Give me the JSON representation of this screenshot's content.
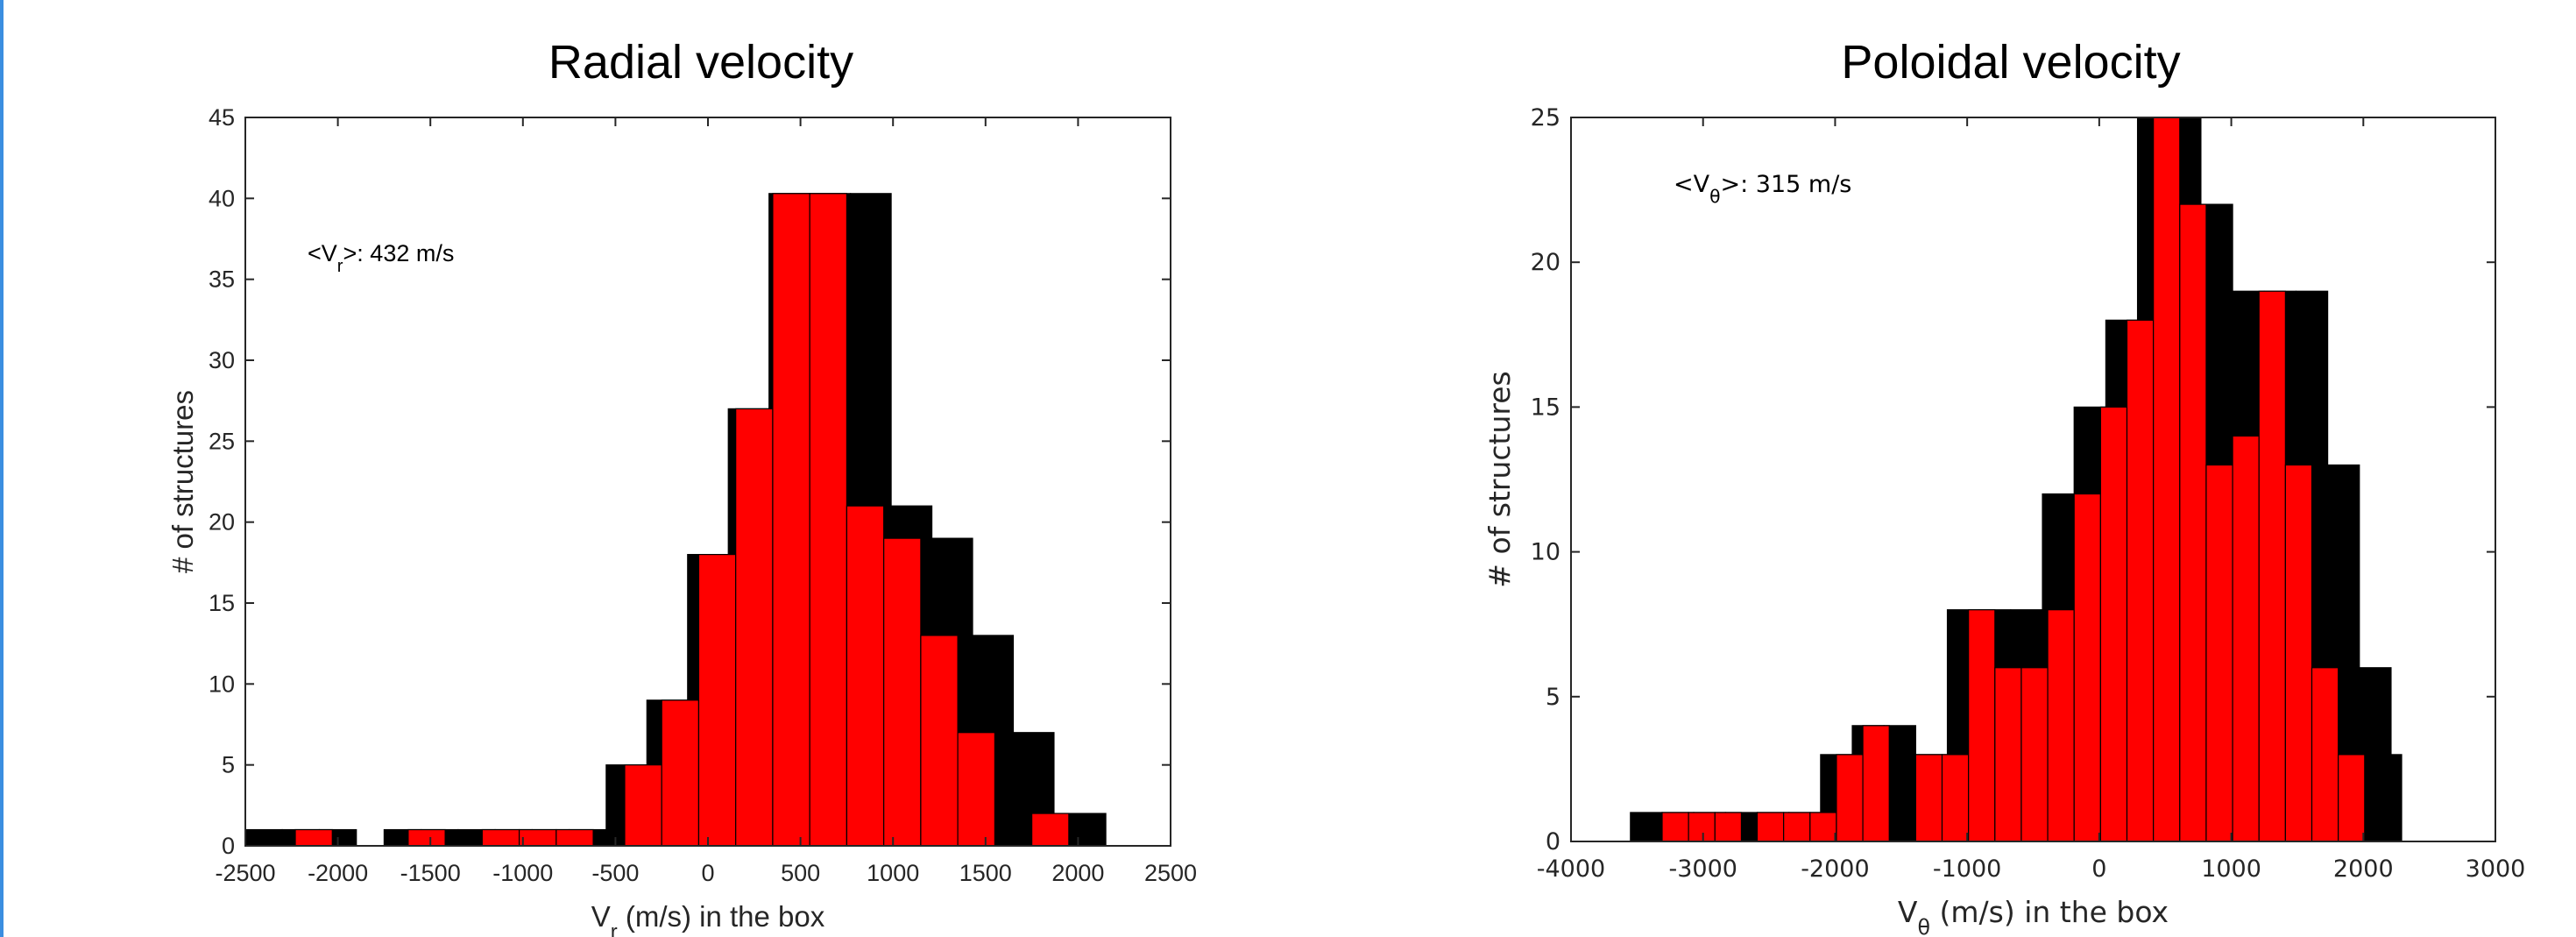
{
  "colors": {
    "accent": "#3b8ee0",
    "black_series": "#000000",
    "red_series": "#ff0000"
  },
  "chart_data": [
    {
      "type": "bar",
      "title": "Radial velocity",
      "ylabel": "# of structures",
      "xlabel_main": "V",
      "xlabel_sub": "r",
      "xlabel_rest": " (m/s) in the box",
      "annotation": {
        "prefix": "<V",
        "sub": "r",
        "suffix": ">: 432 m/s"
      },
      "xlim": [
        -2500,
        2500
      ],
      "ylim": [
        0,
        45
      ],
      "xticks": [
        -2500,
        -2000,
        -1500,
        -1000,
        -500,
        0,
        500,
        1000,
        1500,
        2000,
        2500
      ],
      "yticks": [
        0,
        5,
        10,
        15,
        20,
        25,
        30,
        35,
        40,
        45
      ],
      "series": [
        {
          "color": "black",
          "bins": [
            {
              "x0": -2500,
              "x1": -2300,
              "value": 1
            },
            {
              "x0": -2300,
              "x1": -2100,
              "value": 1
            },
            {
              "x0": -2100,
              "x1": -1900,
              "value": 1
            },
            {
              "x0": -1750,
              "x1": -1550,
              "value": 1
            },
            {
              "x0": -1550,
              "x1": -1350,
              "value": 1
            },
            {
              "x0": -1350,
              "x1": -1150,
              "value": 1
            },
            {
              "x0": -1150,
              "x1": -950,
              "value": 1
            },
            {
              "x0": -950,
              "x1": -750,
              "value": 1
            },
            {
              "x0": -750,
              "x1": -550,
              "value": 1
            },
            {
              "x0": -550,
              "x1": -330,
              "value": 5
            },
            {
              "x0": -330,
              "x1": -110,
              "value": 9
            },
            {
              "x0": -110,
              "x1": 110,
              "value": 18
            },
            {
              "x0": 110,
              "x1": 330,
              "value": 27
            },
            {
              "x0": 330,
              "x1": 550,
              "value": 40.3
            },
            {
              "x0": 550,
              "x1": 770,
              "value": 40.3
            },
            {
              "x0": 770,
              "x1": 990,
              "value": 40.3
            },
            {
              "x0": 990,
              "x1": 1210,
              "value": 21
            },
            {
              "x0": 1210,
              "x1": 1430,
              "value": 19
            },
            {
              "x0": 1430,
              "x1": 1650,
              "value": 13
            },
            {
              "x0": 1650,
              "x1": 1870,
              "value": 7
            },
            {
              "x0": 1870,
              "x1": 2150,
              "value": 2
            }
          ]
        },
        {
          "color": "red",
          "bins": [
            {
              "x0": -2230,
              "x1": -2030,
              "value": 1
            },
            {
              "x0": -1620,
              "x1": -1420,
              "value": 1
            },
            {
              "x0": -1220,
              "x1": -1020,
              "value": 1
            },
            {
              "x0": -1020,
              "x1": -820,
              "value": 1
            },
            {
              "x0": -820,
              "x1": -620,
              "value": 1
            },
            {
              "x0": -450,
              "x1": -250,
              "value": 5
            },
            {
              "x0": -250,
              "x1": -50,
              "value": 9
            },
            {
              "x0": -50,
              "x1": 150,
              "value": 18
            },
            {
              "x0": 150,
              "x1": 350,
              "value": 27
            },
            {
              "x0": 350,
              "x1": 550,
              "value": 40.3
            },
            {
              "x0": 550,
              "x1": 750,
              "value": 40.3
            },
            {
              "x0": 750,
              "x1": 950,
              "value": 21
            },
            {
              "x0": 950,
              "x1": 1150,
              "value": 19
            },
            {
              "x0": 1150,
              "x1": 1350,
              "value": 13
            },
            {
              "x0": 1350,
              "x1": 1550,
              "value": 7
            },
            {
              "x0": 1750,
              "x1": 1950,
              "value": 2
            }
          ]
        }
      ]
    },
    {
      "type": "bar",
      "title": "Poloidal velocity",
      "ylabel": "# of structures",
      "xlabel_main": "V",
      "xlabel_sub": "θ",
      "xlabel_rest": " (m/s) in the box",
      "annotation": {
        "prefix": "<V",
        "sub": "θ",
        "suffix": ">: 315 m/s"
      },
      "xlim": [
        -4000,
        3000
      ],
      "ylim": [
        0,
        25
      ],
      "xticks": [
        -4000,
        -3000,
        -2000,
        -1000,
        0,
        1000,
        2000,
        3000
      ],
      "yticks": [
        0,
        5,
        10,
        15,
        20,
        25
      ],
      "series": [
        {
          "color": "black",
          "bins": [
            {
              "x0": -3550,
              "x1": -3310,
              "value": 1
            },
            {
              "x0": -3310,
              "x1": -3070,
              "value": 1
            },
            {
              "x0": -3070,
              "x1": -2830,
              "value": 1
            },
            {
              "x0": -2830,
              "x1": -2590,
              "value": 1
            },
            {
              "x0": -2590,
              "x1": -2350,
              "value": 1
            },
            {
              "x0": -2350,
              "x1": -2110,
              "value": 1
            },
            {
              "x0": -2110,
              "x1": -1870,
              "value": 3
            },
            {
              "x0": -1870,
              "x1": -1630,
              "value": 4
            },
            {
              "x0": -1630,
              "x1": -1390,
              "value": 4
            },
            {
              "x0": -1390,
              "x1": -1150,
              "value": 3
            },
            {
              "x0": -1150,
              "x1": -910,
              "value": 8
            },
            {
              "x0": -910,
              "x1": -670,
              "value": 8
            },
            {
              "x0": -670,
              "x1": -430,
              "value": 8
            },
            {
              "x0": -430,
              "x1": -190,
              "value": 12
            },
            {
              "x0": -190,
              "x1": 50,
              "value": 15
            },
            {
              "x0": 50,
              "x1": 290,
              "value": 18
            },
            {
              "x0": 290,
              "x1": 530,
              "value": 25
            },
            {
              "x0": 530,
              "x1": 770,
              "value": 25
            },
            {
              "x0": 770,
              "x1": 1010,
              "value": 22
            },
            {
              "x0": 1010,
              "x1": 1250,
              "value": 19
            },
            {
              "x0": 1250,
              "x1": 1490,
              "value": 19
            },
            {
              "x0": 1490,
              "x1": 1730,
              "value": 19
            },
            {
              "x0": 1730,
              "x1": 1970,
              "value": 13
            },
            {
              "x0": 1970,
              "x1": 2210,
              "value": 6
            },
            {
              "x0": 2210,
              "x1": 2290,
              "value": 3
            }
          ]
        },
        {
          "color": "red",
          "bins": [
            {
              "x0": -3310,
              "x1": -3110,
              "value": 1
            },
            {
              "x0": -3110,
              "x1": -2910,
              "value": 1
            },
            {
              "x0": -2910,
              "x1": -2710,
              "value": 1
            },
            {
              "x0": -2590,
              "x1": -2390,
              "value": 1
            },
            {
              "x0": -2390,
              "x1": -2190,
              "value": 1
            },
            {
              "x0": -2190,
              "x1": -1990,
              "value": 1
            },
            {
              "x0": -1990,
              "x1": -1790,
              "value": 3
            },
            {
              "x0": -1790,
              "x1": -1590,
              "value": 4
            },
            {
              "x0": -1390,
              "x1": -1190,
              "value": 3
            },
            {
              "x0": -1190,
              "x1": -990,
              "value": 3
            },
            {
              "x0": -990,
              "x1": -790,
              "value": 8
            },
            {
              "x0": -790,
              "x1": -590,
              "value": 6
            },
            {
              "x0": -590,
              "x1": -390,
              "value": 6
            },
            {
              "x0": -390,
              "x1": -190,
              "value": 8
            },
            {
              "x0": -190,
              "x1": 10,
              "value": 12
            },
            {
              "x0": 10,
              "x1": 210,
              "value": 15
            },
            {
              "x0": 210,
              "x1": 410,
              "value": 18
            },
            {
              "x0": 410,
              "x1": 610,
              "value": 25
            },
            {
              "x0": 610,
              "x1": 810,
              "value": 22
            },
            {
              "x0": 810,
              "x1": 1010,
              "value": 13
            },
            {
              "x0": 1010,
              "x1": 1210,
              "value": 14
            },
            {
              "x0": 1210,
              "x1": 1410,
              "value": 19
            },
            {
              "x0": 1410,
              "x1": 1610,
              "value": 13
            },
            {
              "x0": 1610,
              "x1": 1810,
              "value": 6
            },
            {
              "x0": 1810,
              "x1": 2010,
              "value": 3
            }
          ]
        }
      ]
    }
  ]
}
